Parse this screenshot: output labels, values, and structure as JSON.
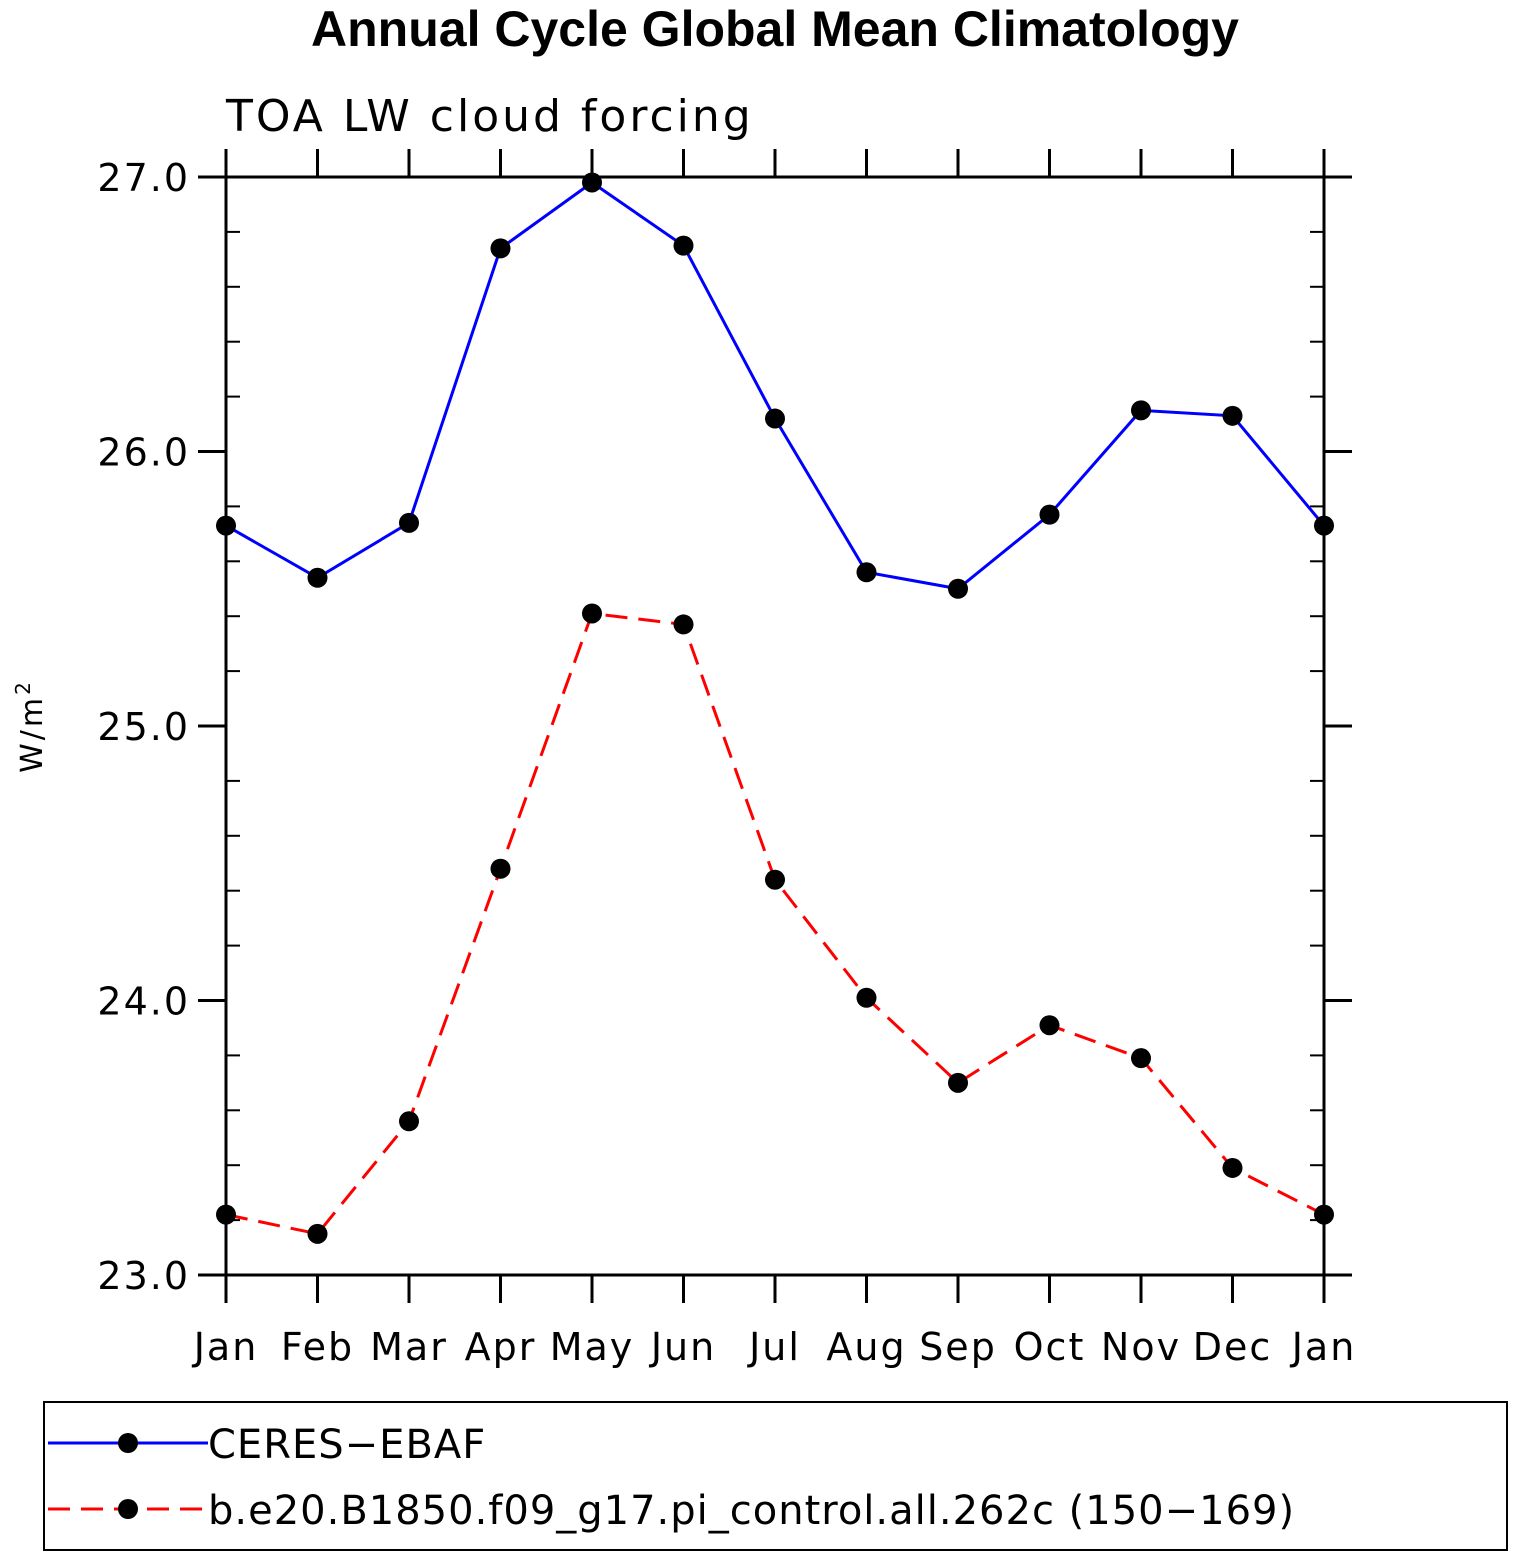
{
  "chart_data": {
    "type": "line",
    "title": "Annual Cycle Global Mean Climatology",
    "subtitle": "TOA LW cloud forcing",
    "xlabel": "",
    "ylabel": "W/m",
    "ylabel_superscript": "2",
    "categories": [
      "Jan",
      "Feb",
      "Mar",
      "Apr",
      "May",
      "Jun",
      "Jul",
      "Aug",
      "Sep",
      "Oct",
      "Nov",
      "Dec",
      "Jan"
    ],
    "ylim": [
      23.0,
      27.0
    ],
    "yticks": [
      "23.0",
      "24.0",
      "25.0",
      "26.0",
      "27.0"
    ],
    "ytick_values": [
      23.0,
      24.0,
      25.0,
      26.0,
      27.0
    ],
    "series": [
      {
        "name": "CERES−EBAF",
        "color": "#0000ff",
        "dash": "solid",
        "values": [
          25.73,
          25.54,
          25.74,
          26.74,
          26.98,
          26.75,
          26.12,
          25.56,
          25.5,
          25.77,
          26.15,
          26.13,
          25.73
        ]
      },
      {
        "name": "b.e20.B1850.f09_g17.pi_control.all.262c (150−169)",
        "color": "#ff0000",
        "dash": "dashed",
        "values": [
          23.22,
          23.15,
          23.56,
          24.48,
          25.41,
          25.37,
          24.44,
          24.01,
          23.7,
          23.91,
          23.79,
          23.39,
          23.22
        ]
      }
    ],
    "legend_position": "bottom"
  }
}
